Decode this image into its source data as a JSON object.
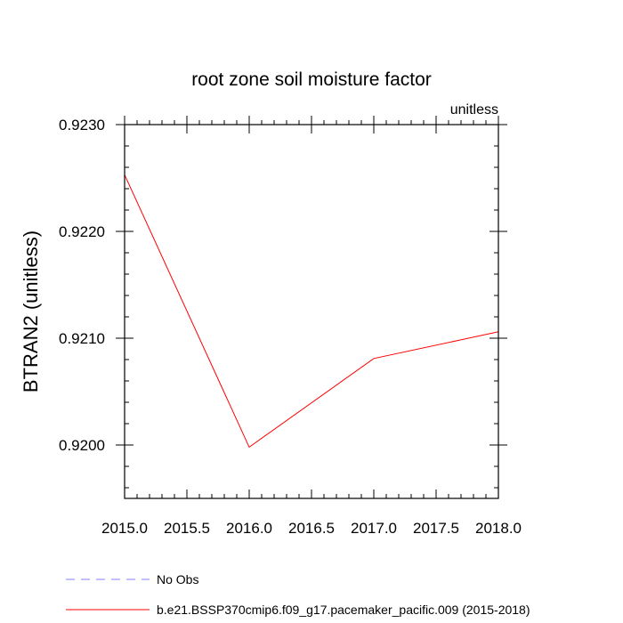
{
  "chart_data": {
    "type": "line",
    "title": "root zone soil moisture factor",
    "units_label": "unitless",
    "ylabel": "BTRAN2  (unitless)",
    "xlabel": "",
    "xlim": [
      2015.0,
      2018.0
    ],
    "ylim": [
      0.9195,
      0.923
    ],
    "x_ticks": [
      "2015.0",
      "2015.5",
      "2016.0",
      "2016.5",
      "2017.0",
      "2017.5",
      "2018.0"
    ],
    "y_ticks": [
      "0.9200",
      "0.9210",
      "0.9220",
      "0.9230"
    ],
    "grid": false,
    "series": [
      {
        "name": "b.e21.BSSP370cmip6.f09_g17.pacemaker_pacific.009 (2015-2018)",
        "color": "#ff0000",
        "x": [
          2015,
          2016,
          2017,
          2018
        ],
        "y": [
          0.92253,
          0.91998,
          0.92081,
          0.92106
        ]
      }
    ],
    "legend": [
      {
        "label": "No Obs",
        "color": "#8080ff",
        "style": "dashed"
      },
      {
        "label": "b.e21.BSSP370cmip6.f09_g17.pacemaker_pacific.009 (2015-2018)",
        "color": "#ff0000",
        "style": "solid"
      }
    ]
  }
}
